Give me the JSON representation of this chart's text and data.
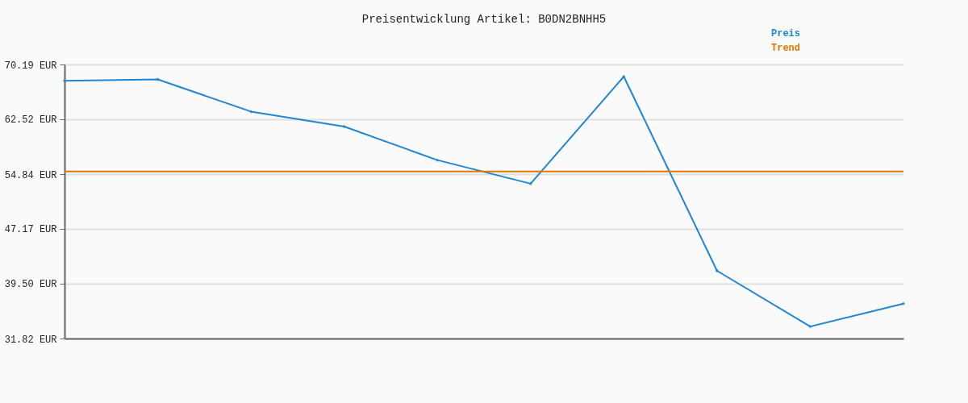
{
  "chart_data": {
    "type": "line",
    "title": "Preisentwicklung Artikel: B0DN2BNHH5",
    "categories": [
      null,
      null,
      null,
      null,
      null,
      null,
      null,
      null,
      null,
      null
    ],
    "series": [
      {
        "name": "Preis",
        "color": "#1f86d4",
        "values": [
          67.9,
          68.1,
          63.6,
          61.5,
          56.8,
          53.5,
          68.5,
          41.3,
          33.5,
          36.7
        ]
      },
      {
        "name": "Trend",
        "color": "#e07800",
        "marker": "none",
        "values": [
          55.2,
          55.2,
          55.2,
          55.2,
          55.2,
          55.2,
          55.2,
          55.2,
          55.2,
          55.2
        ]
      }
    ],
    "ylim": [
      31.82,
      70.19
    ],
    "yticks": [
      {
        "value": 31.82,
        "label": "31.82 EUR"
      },
      {
        "value": 39.5,
        "label": "39.50 EUR"
      },
      {
        "value": 47.17,
        "label": "47.17 EUR"
      },
      {
        "value": 54.84,
        "label": "54.84 EUR"
      },
      {
        "value": 62.52,
        "label": "62.52 EUR"
      },
      {
        "value": 70.19,
        "label": "70.19 EUR"
      }
    ],
    "grid": "y",
    "legend": "top right",
    "tick_labels": "y",
    "marker": "diamond"
  }
}
